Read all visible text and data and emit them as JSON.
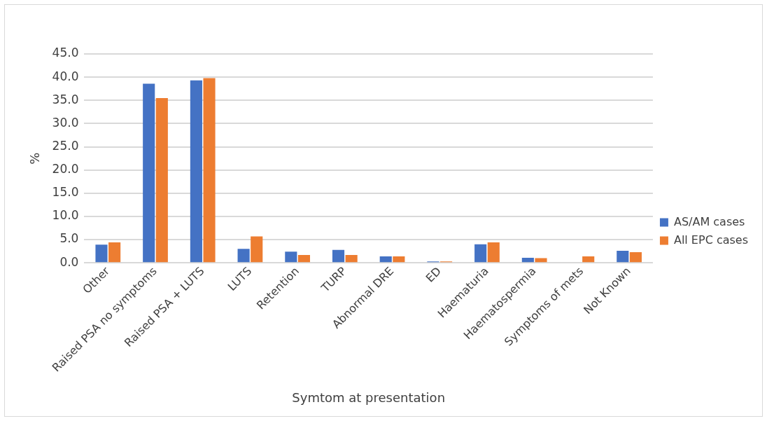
{
  "chart_data": {
    "type": "bar",
    "xlabel": "Symtom at presentation",
    "ylabel": "%",
    "categories": [
      "Other",
      "Raised PSA no symptoms",
      "Raised PSA + LUTS",
      "LUTS",
      "Retention",
      "TURP",
      "Abnormal DRE",
      "ED",
      "Haematuria",
      "Haematospermia",
      "Symptoms of mets",
      "Not Known"
    ],
    "series": [
      {
        "name": "AS/AM cases",
        "color": "#4472c4",
        "values": [
          3.9,
          38.6,
          39.3,
          3.0,
          2.4,
          2.8,
          1.4,
          0.3,
          4.0,
          1.1,
          0,
          2.6
        ]
      },
      {
        "name": "All EPC cases",
        "color": "#ed7d31",
        "values": [
          4.4,
          35.5,
          39.8,
          5.7,
          1.7,
          1.7,
          1.4,
          0.3,
          4.4,
          1.0,
          1.4,
          2.3
        ]
      }
    ],
    "ylim": [
      0,
      45
    ],
    "yticks": [
      {
        "value": 0,
        "label": "0.0"
      },
      {
        "value": 5,
        "label": "5.0"
      },
      {
        "value": 10,
        "label": "10.0"
      },
      {
        "value": 15,
        "label": "15.0"
      },
      {
        "value": 20,
        "label": "20.0"
      },
      {
        "value": 25,
        "label": "25.0"
      },
      {
        "value": 30,
        "label": "30.0"
      },
      {
        "value": 35,
        "label": "35.0"
      },
      {
        "value": 40,
        "label": "40.0"
      },
      {
        "value": 45,
        "label": "45.0"
      }
    ],
    "grid": "y",
    "legend": "right"
  }
}
